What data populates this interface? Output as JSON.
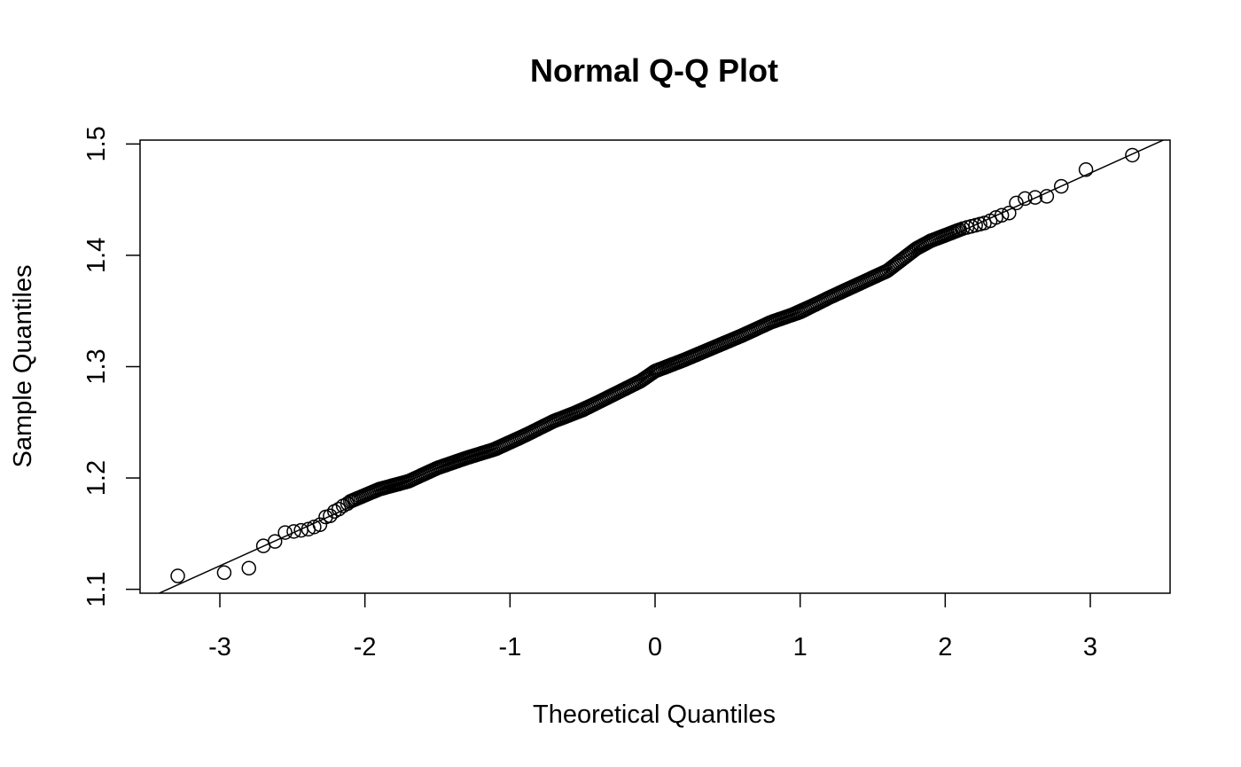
{
  "chart_data": {
    "type": "scatter",
    "title": "Normal Q-Q Plot",
    "xlabel": "Theoretical Quantiles",
    "ylabel": "Sample Quantiles",
    "xlim": [
      -3.55,
      3.55
    ],
    "ylim": [
      1.0965,
      1.5035
    ],
    "x_ticks": [
      -3,
      -2,
      -1,
      0,
      1,
      2,
      3
    ],
    "x_tick_labels": [
      "-3",
      "-2",
      "-1",
      "0",
      "1",
      "2",
      "3"
    ],
    "y_ticks": [
      1.1,
      1.2,
      1.3,
      1.4,
      1.5
    ],
    "y_tick_labels": [
      "1.1",
      "1.2",
      "1.3",
      "1.4",
      "1.5"
    ],
    "grid": false,
    "legend": "none",
    "reference_line": {
      "intercept": 1.2975,
      "slope": 0.0588
    },
    "notable_points": [
      {
        "x": -3.29,
        "y": 1.112
      },
      {
        "x": -2.97,
        "y": 1.115
      },
      {
        "x": -2.8,
        "y": 1.119
      },
      {
        "x": -2.7,
        "y": 1.139
      },
      {
        "x": -2.62,
        "y": 1.143
      },
      {
        "x": -2.55,
        "y": 1.151
      },
      {
        "x": -2.49,
        "y": 1.152
      },
      {
        "x": -2.44,
        "y": 1.153
      },
      {
        "x": -2.39,
        "y": 1.154
      },
      {
        "x": -2.35,
        "y": 1.156
      },
      {
        "x": -2.31,
        "y": 1.158
      },
      {
        "x": -2.27,
        "y": 1.165
      },
      {
        "x": -2.24,
        "y": 1.166
      },
      {
        "x": -2.21,
        "y": 1.17
      },
      {
        "x": -2.18,
        "y": 1.172
      },
      {
        "x": -2.15,
        "y": 1.175
      },
      {
        "x": -2.12,
        "y": 1.177
      },
      {
        "x": 2.12,
        "y": 1.424
      },
      {
        "x": 2.15,
        "y": 1.425
      },
      {
        "x": 2.18,
        "y": 1.426
      },
      {
        "x": 2.21,
        "y": 1.427
      },
      {
        "x": 2.24,
        "y": 1.428
      },
      {
        "x": 2.27,
        "y": 1.429
      },
      {
        "x": 2.31,
        "y": 1.431
      },
      {
        "x": 2.35,
        "y": 1.434
      },
      {
        "x": 2.39,
        "y": 1.436
      },
      {
        "x": 2.44,
        "y": 1.438
      },
      {
        "x": 2.49,
        "y": 1.447
      },
      {
        "x": 2.55,
        "y": 1.451
      },
      {
        "x": 2.62,
        "y": 1.452
      },
      {
        "x": 2.7,
        "y": 1.453
      },
      {
        "x": 2.8,
        "y": 1.462
      },
      {
        "x": 2.97,
        "y": 1.477
      },
      {
        "x": 3.29,
        "y": 1.49
      }
    ],
    "curve_knots": [
      {
        "x": -2.1,
        "y": 1.179
      },
      {
        "x": -1.9,
        "y": 1.19
      },
      {
        "x": -1.7,
        "y": 1.197
      },
      {
        "x": -1.5,
        "y": 1.209
      },
      {
        "x": -1.3,
        "y": 1.218
      },
      {
        "x": -1.1,
        "y": 1.226
      },
      {
        "x": -0.9,
        "y": 1.238
      },
      {
        "x": -0.7,
        "y": 1.251
      },
      {
        "x": -0.5,
        "y": 1.261
      },
      {
        "x": -0.3,
        "y": 1.274
      },
      {
        "x": -0.1,
        "y": 1.287
      },
      {
        "x": 0.0,
        "y": 1.296
      },
      {
        "x": 0.2,
        "y": 1.306
      },
      {
        "x": 0.4,
        "y": 1.317
      },
      {
        "x": 0.6,
        "y": 1.328
      },
      {
        "x": 0.8,
        "y": 1.34
      },
      {
        "x": 1.0,
        "y": 1.349
      },
      {
        "x": 1.2,
        "y": 1.362
      },
      {
        "x": 1.4,
        "y": 1.374
      },
      {
        "x": 1.6,
        "y": 1.386
      },
      {
        "x": 1.7,
        "y": 1.396
      },
      {
        "x": 1.8,
        "y": 1.406
      },
      {
        "x": 1.9,
        "y": 1.413
      },
      {
        "x": 2.0,
        "y": 1.418
      },
      {
        "x": 2.1,
        "y": 1.423
      }
    ],
    "curve_point_count": 360
  }
}
